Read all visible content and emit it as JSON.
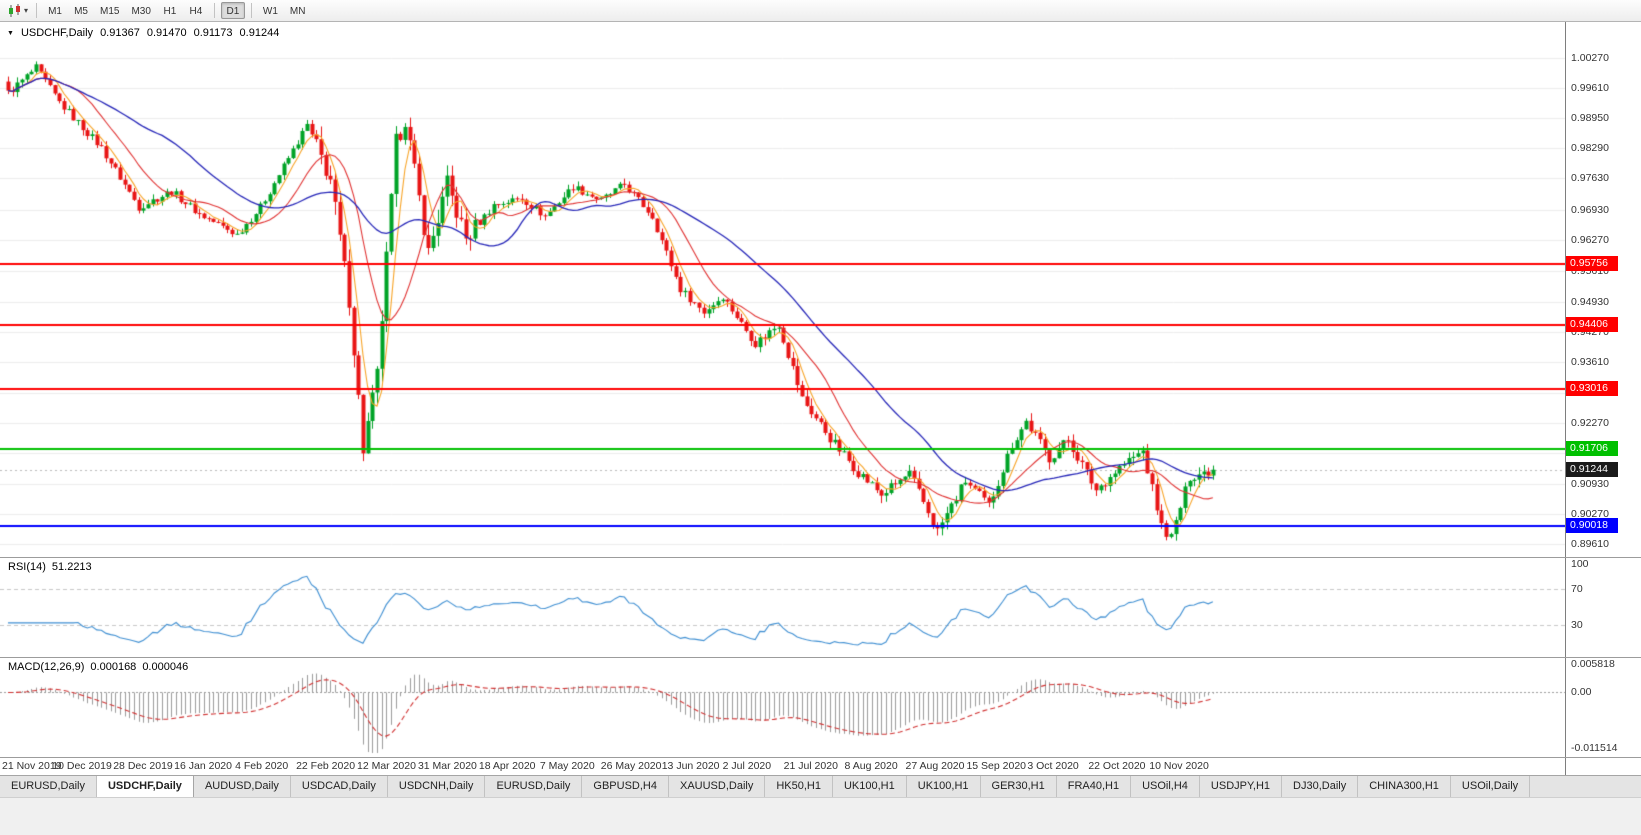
{
  "toolbar": {
    "timeframes": [
      "M1",
      "M5",
      "M15",
      "M30",
      "H1",
      "H4",
      "D1",
      "W1",
      "MN"
    ],
    "active": "D1"
  },
  "chart": {
    "title": {
      "symbol": "USDCHF,Daily"
    },
    "ohlc": {
      "open": "0.91367",
      "high": "0.91470",
      "low": "0.91173",
      "close": "0.91244"
    },
    "current_price": {
      "label": "0.91244",
      "value": 0.91244,
      "badge_color": "#1a1a1a"
    },
    "price_axis_ticks": [
      "1.00270",
      "0.99610",
      "0.98950",
      "0.98290",
      "0.97630",
      "0.96930",
      "0.96270",
      "0.95610",
      "0.94930",
      "0.94270",
      "0.93610",
      "0.92930",
      "0.92270",
      "0.91610",
      "0.90930",
      "0.90270",
      "0.89610"
    ],
    "levels": [
      {
        "label": "0.95756",
        "value": 0.95756,
        "color": "#ff0000"
      },
      {
        "label": "0.94406",
        "value": 0.94406,
        "color": "#ff0000"
      },
      {
        "label": "0.93016",
        "value": 0.93016,
        "color": "#ff0000"
      },
      {
        "label": "0.91706",
        "value": 0.91706,
        "color": "#00c000"
      },
      {
        "label": "0.90018",
        "value": 0.90018,
        "color": "#0000ff"
      }
    ],
    "date_axis": [
      "21 Nov 2019",
      "10 Dec 2019",
      "28 Dec 2019",
      "16 Jan 2020",
      "4 Feb 2020",
      "22 Feb 2020",
      "12 Mar 2020",
      "31 Mar 2020",
      "18 Apr 2020",
      "7 May 2020",
      "26 May 2020",
      "13 Jun 2020",
      "2 Jul 2020",
      "21 Jul 2020",
      "8 Aug 2020",
      "27 Aug 2020",
      "15 Sep 2020",
      "3 Oct 2020",
      "22 Oct 2020",
      "10 Nov 2020"
    ]
  },
  "rsi": {
    "label": "RSI(14)",
    "value": "51.2213",
    "levels": [
      70,
      30
    ],
    "axis": [
      {
        "label": "100",
        "value": 100
      },
      {
        "label": "70",
        "value": 70
      },
      {
        "label": "30",
        "value": 30
      }
    ]
  },
  "macd": {
    "label": "MACD(12,26,9)",
    "value_main": "0.000168",
    "value_signal": "0.000046",
    "axis": [
      {
        "label": "0.005818",
        "value": 0.005818
      },
      {
        "label": "0.00",
        "value": 0
      },
      {
        "label": "-0.011514",
        "value": -0.011514
      }
    ]
  },
  "tabs": {
    "active_index": 1,
    "items": [
      "EURUSD,Daily",
      "USDCHF,Daily",
      "AUDUSD,Daily",
      "USDCAD,Daily",
      "USDCNH,Daily",
      "EURUSD,Daily",
      "GBPUSD,H4",
      "XAUUSD,Daily",
      "HK50,H1",
      "UK100,H1",
      "UK100,H1",
      "GER30,H1",
      "FRA40,H1",
      "USOil,H4",
      "USDJPY,H1",
      "DJ30,Daily",
      "CHINA300,H1",
      "USOil,Daily"
    ]
  },
  "chart_data": {
    "type": "candlestick",
    "symbol": "USDCHF",
    "timeframe": "Daily",
    "ohlc_current": {
      "open": 0.91367,
      "high": 0.9147,
      "low": 0.91173,
      "close": 0.91244
    },
    "price_range_visible": [
      0.8933,
      1.0106
    ],
    "candles_count": 259,
    "horizontal_levels": [
      {
        "value": 0.95756,
        "color": "#ff0000"
      },
      {
        "value": 0.94406,
        "color": "#ff0000"
      },
      {
        "value": 0.93016,
        "color": "#ff0000"
      },
      {
        "value": 0.91706,
        "color": "#00c000"
      },
      {
        "value": 0.90018,
        "color": "#0000ff"
      }
    ],
    "indicators": [
      {
        "name": "RSI",
        "period": 14,
        "current": 51.2213,
        "levels": [
          70,
          30
        ]
      },
      {
        "name": "MACD",
        "fast": 12,
        "slow": 26,
        "signal": 9,
        "current_main": 0.000168,
        "current_signal": 4.6e-05,
        "axis_max": 0.005818,
        "axis_min": -0.011514
      }
    ],
    "colors": {
      "bull": "#00a327",
      "bear": "#e81515",
      "ma_fast": "#f7a428",
      "ma_mid": "#e03232",
      "ma_slow": "#2626b8",
      "rsi_line": "#3f8fd2",
      "macd_hist": "#9a9a9a",
      "macd_signal": "#d03030",
      "grid": "#ececec"
    },
    "price_path_anchors": [
      [
        0,
        0.995
      ],
      [
        6,
        1.0005
      ],
      [
        11,
        0.993
      ],
      [
        20,
        0.983
      ],
      [
        28,
        0.97
      ],
      [
        35,
        0.9735
      ],
      [
        41,
        0.9685
      ],
      [
        49,
        0.964
      ],
      [
        54,
        0.97
      ],
      [
        61,
        0.9825
      ],
      [
        64,
        0.988
      ],
      [
        69,
        0.976
      ],
      [
        73,
        0.95
      ],
      [
        76,
        0.917
      ],
      [
        79,
        0.933
      ],
      [
        83,
        0.984
      ],
      [
        85,
        0.9895
      ],
      [
        90,
        0.96
      ],
      [
        94,
        0.975
      ],
      [
        98,
        0.963
      ],
      [
        104,
        0.9705
      ],
      [
        110,
        0.972
      ],
      [
        115,
        0.968
      ],
      [
        121,
        0.9745
      ],
      [
        127,
        0.9715
      ],
      [
        132,
        0.975
      ],
      [
        138,
        0.968
      ],
      [
        144,
        0.952
      ],
      [
        149,
        0.947
      ],
      [
        153,
        0.9505
      ],
      [
        160,
        0.94
      ],
      [
        165,
        0.9445
      ],
      [
        170,
        0.928
      ],
      [
        177,
        0.918
      ],
      [
        182,
        0.912
      ],
      [
        187,
        0.907
      ],
      [
        193,
        0.9115
      ],
      [
        199,
        0.899
      ],
      [
        205,
        0.91
      ],
      [
        210,
        0.9045
      ],
      [
        215,
        0.918
      ],
      [
        218,
        0.923
      ],
      [
        223,
        0.915
      ],
      [
        227,
        0.919
      ],
      [
        233,
        0.908
      ],
      [
        238,
        0.913
      ],
      [
        243,
        0.9165
      ],
      [
        247,
        0.9
      ],
      [
        249,
        0.8975
      ],
      [
        253,
        0.911
      ],
      [
        258,
        0.91244
      ]
    ]
  }
}
